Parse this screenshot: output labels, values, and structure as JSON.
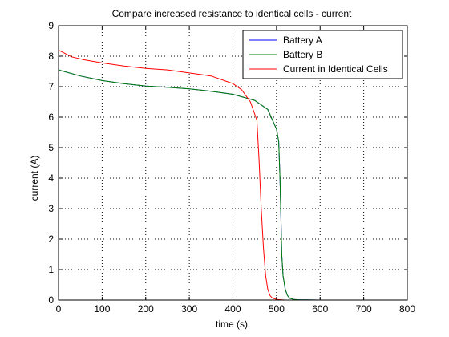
{
  "chart_data": {
    "type": "line",
    "title": "Compare increased resistance to identical cells - current",
    "xlabel": "time (s)",
    "ylabel": "current (A)",
    "xlim": [
      0,
      800
    ],
    "ylim": [
      0,
      9
    ],
    "xticks": [
      "0",
      "100",
      "200",
      "300",
      "400",
      "500",
      "600",
      "700",
      "800"
    ],
    "yticks": [
      "0",
      "1",
      "2",
      "3",
      "4",
      "5",
      "6",
      "7",
      "8",
      "9"
    ],
    "grid": true,
    "legend_position": "top-right",
    "series": [
      {
        "name": "Battery A",
        "color": "#0000ff",
        "x": [
          0,
          50,
          100,
          150,
          200,
          250,
          300,
          350,
          400,
          450,
          480,
          500,
          505,
          508,
          510,
          512,
          515,
          520,
          525,
          530,
          540,
          550,
          600,
          700,
          800
        ],
        "y": [
          7.55,
          7.35,
          7.2,
          7.1,
          7.02,
          6.98,
          6.93,
          6.85,
          6.75,
          6.55,
          6.25,
          5.6,
          5.2,
          4.0,
          2.8,
          1.5,
          0.8,
          0.35,
          0.15,
          0.06,
          0.02,
          0.01,
          0.0,
          0.0,
          0.0
        ]
      },
      {
        "name": "Battery B",
        "color": "#008000",
        "x": [
          0,
          50,
          100,
          150,
          200,
          250,
          300,
          350,
          400,
          450,
          480,
          500,
          505,
          508,
          510,
          512,
          515,
          520,
          525,
          530,
          540,
          550,
          600,
          700,
          800
        ],
        "y": [
          7.55,
          7.35,
          7.2,
          7.1,
          7.02,
          6.98,
          6.93,
          6.85,
          6.75,
          6.55,
          6.25,
          5.6,
          5.2,
          4.0,
          2.8,
          1.5,
          0.8,
          0.35,
          0.15,
          0.06,
          0.02,
          0.01,
          0.0,
          0.0,
          0.0
        ]
      },
      {
        "name": "Current in Identical Cells",
        "color": "#ff0000",
        "x": [
          0,
          30,
          60,
          100,
          150,
          200,
          250,
          300,
          350,
          380,
          400,
          420,
          440,
          455,
          460,
          465,
          470,
          475,
          480,
          485,
          490,
          500,
          520,
          600,
          700,
          800
        ],
        "y": [
          8.2,
          7.98,
          7.88,
          7.78,
          7.68,
          7.6,
          7.55,
          7.45,
          7.35,
          7.2,
          7.1,
          6.9,
          6.5,
          5.9,
          4.6,
          3.0,
          1.7,
          0.8,
          0.35,
          0.15,
          0.07,
          0.02,
          0.0,
          0.0,
          0.0,
          0.0
        ]
      }
    ]
  }
}
